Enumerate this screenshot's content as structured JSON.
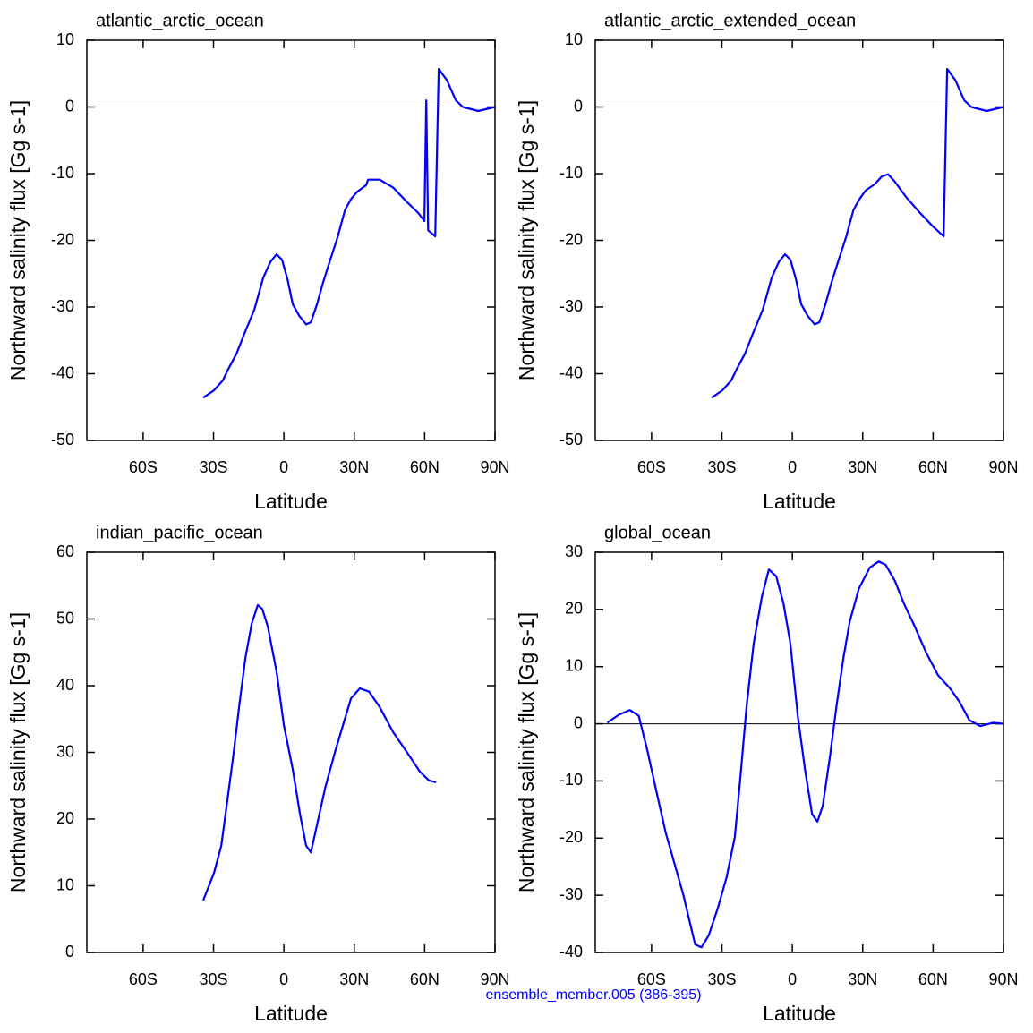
{
  "footer": "ensemble_member.005 (386-395)",
  "chart_data": [
    {
      "type": "line",
      "title": "atlantic_arctic_ocean",
      "x_label": "Latitude",
      "y_label": "Northward salinity flux [Gg s-1]",
      "x": [
        -34.4,
        -29.8,
        -26,
        -23.7,
        -20.2,
        -16.4,
        -12.6,
        -8.8,
        -5.7,
        -3.1,
        -0.8,
        1.5,
        3.8,
        6.5,
        9.5,
        11.5,
        14.1,
        16.8,
        19.8,
        22.9,
        26,
        28.6,
        31.3,
        35.1,
        35.9,
        40.8,
        46.6,
        52.3,
        57.3,
        59.9,
        60.7,
        61.5,
        64.5,
        66,
        69.5,
        73.3,
        76.3,
        82.8,
        90
      ],
      "values": [
        -43.6,
        -42.5,
        -41,
        -39.3,
        -37,
        -33.6,
        -30.4,
        -25.6,
        -23.2,
        -22.1,
        -22.9,
        -25.8,
        -29.6,
        -31.3,
        -32.6,
        -32.3,
        -29.6,
        -26.2,
        -22.9,
        -19.5,
        -15.5,
        -13.8,
        -12.7,
        -11.7,
        -10.9,
        -10.9,
        -12.1,
        -14.2,
        -15.9,
        -17.1,
        1,
        -18.5,
        -19.4,
        5.7,
        4,
        1,
        0,
        -0.6,
        0
      ],
      "color": "#0000ff",
      "xlim": [
        -84,
        90
      ],
      "ylim": [
        -50,
        10
      ],
      "xticks": [
        {
          "value": -60,
          "label": "60S"
        },
        {
          "value": -30,
          "label": "30S"
        },
        0,
        {
          "value": 30,
          "label": "30N"
        },
        {
          "value": 60,
          "label": "60N"
        },
        {
          "value": 90,
          "label": "90N"
        }
      ],
      "yticks": [
        10,
        0,
        -10,
        -20,
        -30,
        -40,
        -50
      ],
      "reference_line": 0
    },
    {
      "type": "line",
      "title": "atlantic_arctic_extended_ocean",
      "x_label": "Latitude",
      "y_label": "Northward salinity flux [Gg s-1]",
      "x": [
        -34.4,
        -29.8,
        -26,
        -23.7,
        -20.2,
        -16.4,
        -12.6,
        -8.8,
        -5.7,
        -3.1,
        -0.8,
        1.5,
        3.8,
        6.5,
        9.5,
        11.5,
        14.1,
        16.8,
        19.8,
        22.9,
        26,
        28.6,
        31.3,
        35.1,
        38.2,
        40.8,
        43.5,
        48.5,
        54.2,
        59.9,
        64.5,
        66,
        69.5,
        73.3,
        76.3,
        82.8,
        90
      ],
      "values": [
        -43.6,
        -42.5,
        -41,
        -39.3,
        -37,
        -33.6,
        -30.4,
        -25.6,
        -23.2,
        -22.1,
        -22.9,
        -25.8,
        -29.6,
        -31.3,
        -32.6,
        -32.3,
        -29.6,
        -26.2,
        -22.9,
        -19.5,
        -15.5,
        -13.8,
        -12.5,
        -11.6,
        -10.4,
        -10.1,
        -11.1,
        -13.5,
        -15.8,
        -17.9,
        -19.4,
        5.7,
        4,
        1,
        0,
        -0.6,
        0
      ],
      "color": "#0000ff",
      "xlim": [
        -84,
        90
      ],
      "ylim": [
        -50,
        10
      ],
      "xticks": [
        {
          "value": -60,
          "label": "60S"
        },
        {
          "value": -30,
          "label": "30S"
        },
        0,
        {
          "value": 30,
          "label": "30N"
        },
        {
          "value": 60,
          "label": "60N"
        },
        {
          "value": 90,
          "label": "90N"
        }
      ],
      "yticks": [
        10,
        0,
        -10,
        -20,
        -30,
        -40,
        -50
      ],
      "reference_line": 0
    },
    {
      "type": "line",
      "title": "indian_pacific_ocean",
      "x_label": "Latitude",
      "y_label": "Northward salinity flux [Gg s-1]",
      "x": [
        -34.4,
        -29.8,
        -26.7,
        -24,
        -21.4,
        -19.1,
        -16.4,
        -13.7,
        -11.1,
        -9.2,
        -6.9,
        -3.1,
        0,
        3.8,
        6.9,
        9.5,
        11.5,
        14.1,
        17.6,
        21.8,
        25.2,
        28.6,
        32.4,
        36.3,
        40.8,
        46.6,
        52.3,
        58,
        61.8,
        64.9
      ],
      "values": [
        7.8,
        11.9,
        16,
        23,
        30,
        36.8,
        44.2,
        49.3,
        52.1,
        51.5,
        48.9,
        42.1,
        34.1,
        27.4,
        20.7,
        16,
        15,
        19.1,
        24.7,
        30.1,
        34.1,
        38.1,
        39.6,
        39.1,
        36.8,
        33,
        30.1,
        27.1,
        25.8,
        25.5
      ],
      "color": "#0000ff",
      "xlim": [
        -84,
        90
      ],
      "ylim": [
        0,
        60
      ],
      "xticks": [
        {
          "value": -60,
          "label": "60S"
        },
        {
          "value": -30,
          "label": "30S"
        },
        0,
        {
          "value": 30,
          "label": "30N"
        },
        {
          "value": 60,
          "label": "60N"
        },
        {
          "value": 90,
          "label": "90N"
        }
      ],
      "yticks": [
        60,
        50,
        40,
        30,
        20,
        10,
        0
      ]
    },
    {
      "type": "line",
      "title": "global_ocean",
      "x_label": "Latitude",
      "y_label": "Northward salinity flux [Gg s-1]",
      "x": [
        -78.9,
        -73.9,
        -69.3,
        -65.5,
        -61.7,
        -57.9,
        -54,
        -50.2,
        -46.4,
        -43.7,
        -41.4,
        -38.7,
        -35.6,
        -31.8,
        -28,
        -24.5,
        -22.2,
        -19.5,
        -16.5,
        -13,
        -10,
        -6.9,
        -3.8,
        -0.8,
        2.3,
        5.4,
        8.4,
        10.7,
        13,
        16.1,
        18.8,
        21.8,
        24.5,
        28.4,
        33,
        36.8,
        39.8,
        43.7,
        47.5,
        52.1,
        57.1,
        62.1,
        67.4,
        71.3,
        75.5,
        80.1,
        85.8,
        90
      ],
      "values": [
        0.2,
        1.6,
        2.4,
        1.4,
        -4.8,
        -11.9,
        -19,
        -24.5,
        -30,
        -34.7,
        -38.6,
        -39.1,
        -37,
        -32.3,
        -26.8,
        -19.8,
        -9.6,
        3,
        14,
        22.2,
        27,
        25.8,
        21.1,
        14,
        1.4,
        -8,
        -15.8,
        -17.1,
        -14.3,
        -5.6,
        3,
        11.6,
        17.9,
        23.7,
        27.3,
        28.4,
        27.8,
        25,
        21.1,
        17.1,
        12.4,
        8.5,
        6.1,
        3.8,
        0.6,
        -0.4,
        0.2,
        0
      ],
      "color": "#0000ff",
      "xlim": [
        -84,
        90
      ],
      "ylim": [
        -40,
        30
      ],
      "xticks": [
        {
          "value": -60,
          "label": "60S"
        },
        {
          "value": -30,
          "label": "30S"
        },
        0,
        {
          "value": 30,
          "label": "30N"
        },
        {
          "value": 60,
          "label": "60N"
        },
        {
          "value": 90,
          "label": "90N"
        }
      ],
      "yticks": [
        30,
        20,
        10,
        0,
        -10,
        -20,
        -30,
        -40
      ],
      "reference_line": 0
    }
  ]
}
